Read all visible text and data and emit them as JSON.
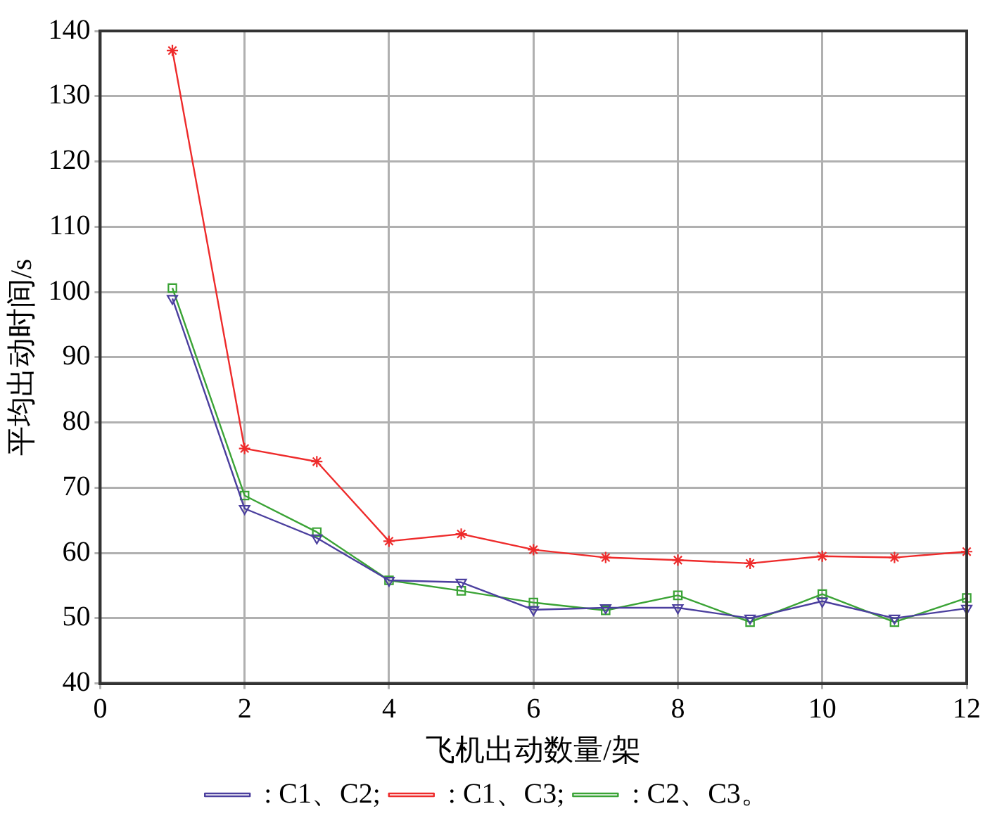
{
  "chart_data": {
    "type": "line",
    "xlabel": "飞机出动数量/架",
    "ylabel": "平均出动时间/s",
    "x": [
      1,
      2,
      3,
      4,
      5,
      6,
      7,
      8,
      9,
      10,
      11,
      12
    ],
    "series": [
      {
        "name": ": C1、C2;",
        "color": "#4b3f9e",
        "marker": "triangle",
        "values": [
          99,
          66.8,
          62.3,
          55.8,
          55.5,
          51.3,
          51.6,
          51.6,
          50.0,
          52.6,
          50.0,
          51.5
        ]
      },
      {
        "name": ": C1、C3;",
        "color": "#ee2b2b",
        "marker": "cross",
        "values": [
          137,
          76,
          74,
          61.8,
          62.9,
          60.5,
          59.3,
          58.9,
          58.4,
          59.5,
          59.3,
          60.2
        ]
      },
      {
        "name": ": C2、C3。",
        "color": "#3aa335",
        "marker": "square",
        "values": [
          100.6,
          68.8,
          63.2,
          55.8,
          54.2,
          52.4,
          51.2,
          53.5,
          49.4,
          53.7,
          49.4,
          53.1
        ]
      }
    ],
    "xlim": [
      0,
      12
    ],
    "xticks": [
      0,
      2,
      4,
      6,
      8,
      10,
      12
    ],
    "ylim": [
      40,
      140
    ],
    "yticks": [
      40,
      50,
      60,
      70,
      80,
      90,
      100,
      110,
      120,
      130,
      140
    ],
    "grid": true,
    "legend": "bottom",
    "line_style": "solid"
  }
}
